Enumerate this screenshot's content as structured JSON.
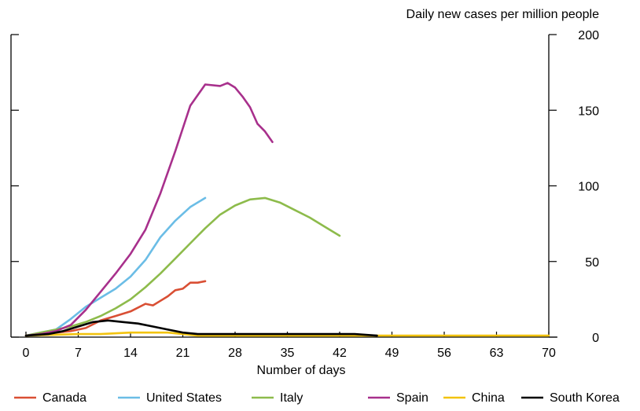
{
  "chart_data": {
    "type": "line",
    "ylabel": "Daily new cases per million people",
    "xlabel": "Number of days",
    "xlim": [
      0,
      70
    ],
    "ylim": [
      0,
      200
    ],
    "x_ticks": [
      0,
      7,
      14,
      21,
      28,
      35,
      42,
      49,
      56,
      63,
      70
    ],
    "y_ticks": [
      0,
      50,
      100,
      150,
      200
    ],
    "y_axis_side": "right",
    "grid": false,
    "legend_position": "bottom",
    "series": [
      {
        "name": "Canada",
        "color": "#d94f34",
        "x": [
          0,
          2,
          4,
          6,
          8,
          10,
          12,
          14,
          16,
          17,
          18,
          19,
          20,
          21,
          22,
          23,
          24
        ],
        "y": [
          1,
          2,
          3,
          4,
          6,
          11,
          14,
          17,
          22,
          21,
          24,
          27,
          31,
          32,
          36,
          36,
          37
        ]
      },
      {
        "name": "United States",
        "color": "#6bbde6",
        "x": [
          0,
          2,
          4,
          6,
          8,
          10,
          12,
          14,
          16,
          18,
          20,
          22,
          24
        ],
        "y": [
          1,
          3,
          5,
          12,
          20,
          26,
          32,
          40,
          51,
          66,
          77,
          86,
          92
        ]
      },
      {
        "name": "Italy",
        "color": "#8dbb4b",
        "x": [
          0,
          2,
          4,
          6,
          8,
          10,
          12,
          14,
          16,
          18,
          20,
          22,
          24,
          26,
          28,
          30,
          32,
          34,
          36,
          38,
          40,
          42
        ],
        "y": [
          1,
          3,
          5,
          7,
          10,
          14,
          19,
          25,
          33,
          42,
          52,
          62,
          72,
          81,
          87,
          91,
          92,
          89,
          84,
          79,
          73,
          67
        ]
      },
      {
        "name": "Spain",
        "color": "#a8308c",
        "x": [
          0,
          2,
          4,
          6,
          8,
          10,
          12,
          14,
          16,
          18,
          20,
          22,
          24,
          26,
          27,
          28,
          29,
          30,
          31,
          32,
          33
        ],
        "y": [
          1,
          2,
          4,
          8,
          18,
          30,
          42,
          55,
          71,
          95,
          123,
          153,
          167,
          166,
          168,
          165,
          159,
          152,
          141,
          136,
          129
        ]
      },
      {
        "name": "China",
        "color": "#f2c30f",
        "x": [
          0,
          7,
          10,
          14,
          16,
          19,
          21,
          23,
          28,
          35,
          42,
          49,
          56,
          63,
          70
        ],
        "y": [
          1,
          2,
          2,
          3,
          3,
          3,
          2,
          1,
          1,
          1,
          1,
          1,
          1,
          1,
          1
        ]
      },
      {
        "name": "South Korea",
        "color": "#000000",
        "x": [
          0,
          3,
          5,
          7,
          9,
          11,
          13,
          15,
          17,
          19,
          21,
          23,
          25,
          28,
          31,
          35,
          40,
          44,
          47
        ],
        "y": [
          1,
          2,
          4,
          7,
          10,
          11,
          10,
          9,
          7,
          5,
          3,
          2,
          2,
          2,
          2,
          2,
          2,
          2,
          1
        ]
      }
    ]
  }
}
